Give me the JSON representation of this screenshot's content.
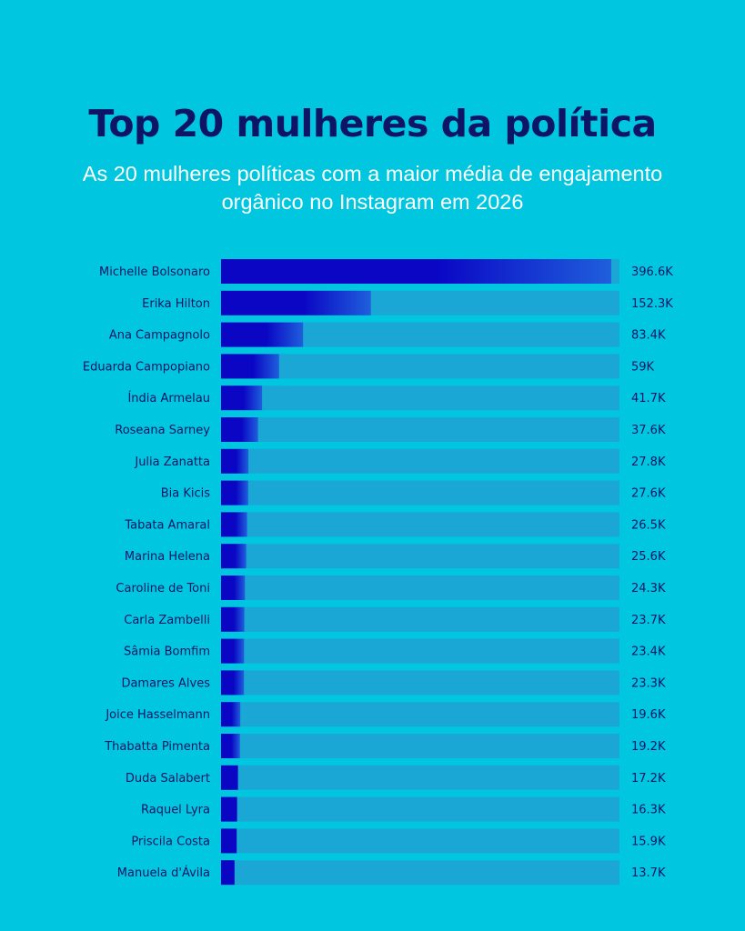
{
  "chart_data": {
    "type": "bar",
    "orientation": "horizontal",
    "title": "Top 20 mulheres da política",
    "subtitle": "As 20 mulheres políticas com a maior média de engajamento orgânico no Instagram em 2026",
    "xlabel": "",
    "ylabel": "",
    "xlim": [
      0,
      405
    ],
    "units": "K",
    "categories": [
      "Michelle Bolsonaro",
      "Erika Hilton",
      "Ana Campagnolo",
      "Eduarda Campopiano",
      "Índia Armelau",
      "Roseana Sarney",
      "Julia Zanatta",
      "Bia Kicis",
      "Tabata Amaral",
      "Marina Helena",
      "Caroline de Toni",
      "Carla Zambelli",
      "Sâmia Bomfim",
      "Damares Alves",
      "Joice Hasselmann",
      "Thabatta Pimenta",
      "Duda Salabert",
      "Raquel Lyra",
      "Priscila Costa",
      "Manuela d'Ávila"
    ],
    "values": [
      396.6,
      152.3,
      83.4,
      59,
      41.7,
      37.6,
      27.8,
      27.6,
      26.5,
      25.6,
      24.3,
      23.7,
      23.4,
      23.3,
      19.6,
      19.2,
      17.2,
      16.3,
      15.9,
      13.7
    ],
    "value_labels": [
      "396.6K",
      "152.3K",
      "83.4K",
      "59K",
      "41.7K",
      "37.6K",
      "27.8K",
      "27.6K",
      "26.5K",
      "25.6K",
      "24.3K",
      "23.7K",
      "23.4K",
      "23.3K",
      "19.6K",
      "19.2K",
      "17.2K",
      "16.3K",
      "15.9K",
      "13.7K"
    ],
    "colors": {
      "background": "#00c7df",
      "track": "#1aa7d5",
      "bar": "#0a06c4",
      "bar_fade": "#1f5fdc",
      "title": "#0f1566",
      "subtitle": "#ffffff"
    }
  }
}
